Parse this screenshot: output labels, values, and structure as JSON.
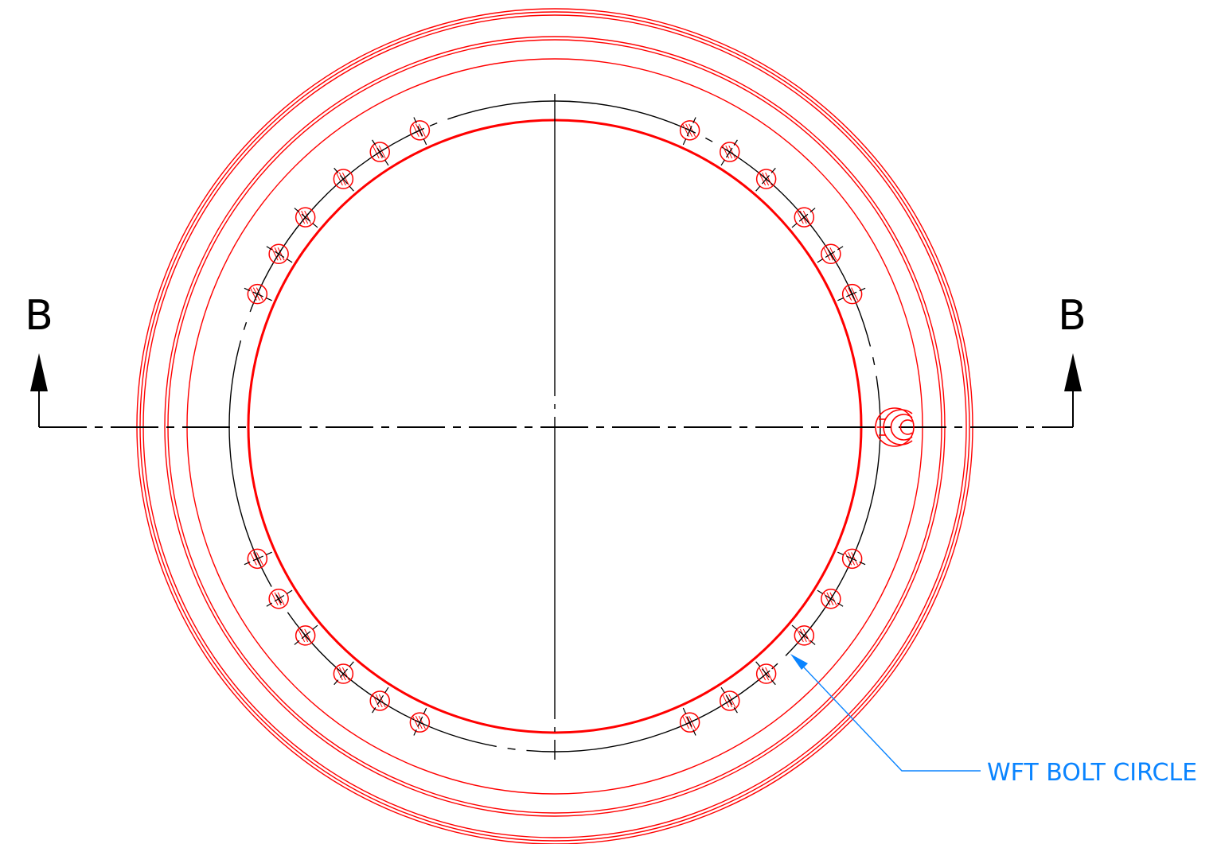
{
  "drawing": {
    "section_label_left": "B",
    "section_label_right": "B",
    "callout_label": "WFT BOLT CIRCLE",
    "bolt_hole_count": 24,
    "bolt_groups": 8,
    "holes_per_group": 3
  },
  "colors": {
    "geometry": "#ff0000",
    "centerline": "#000000",
    "callout": "#0a84ff"
  }
}
